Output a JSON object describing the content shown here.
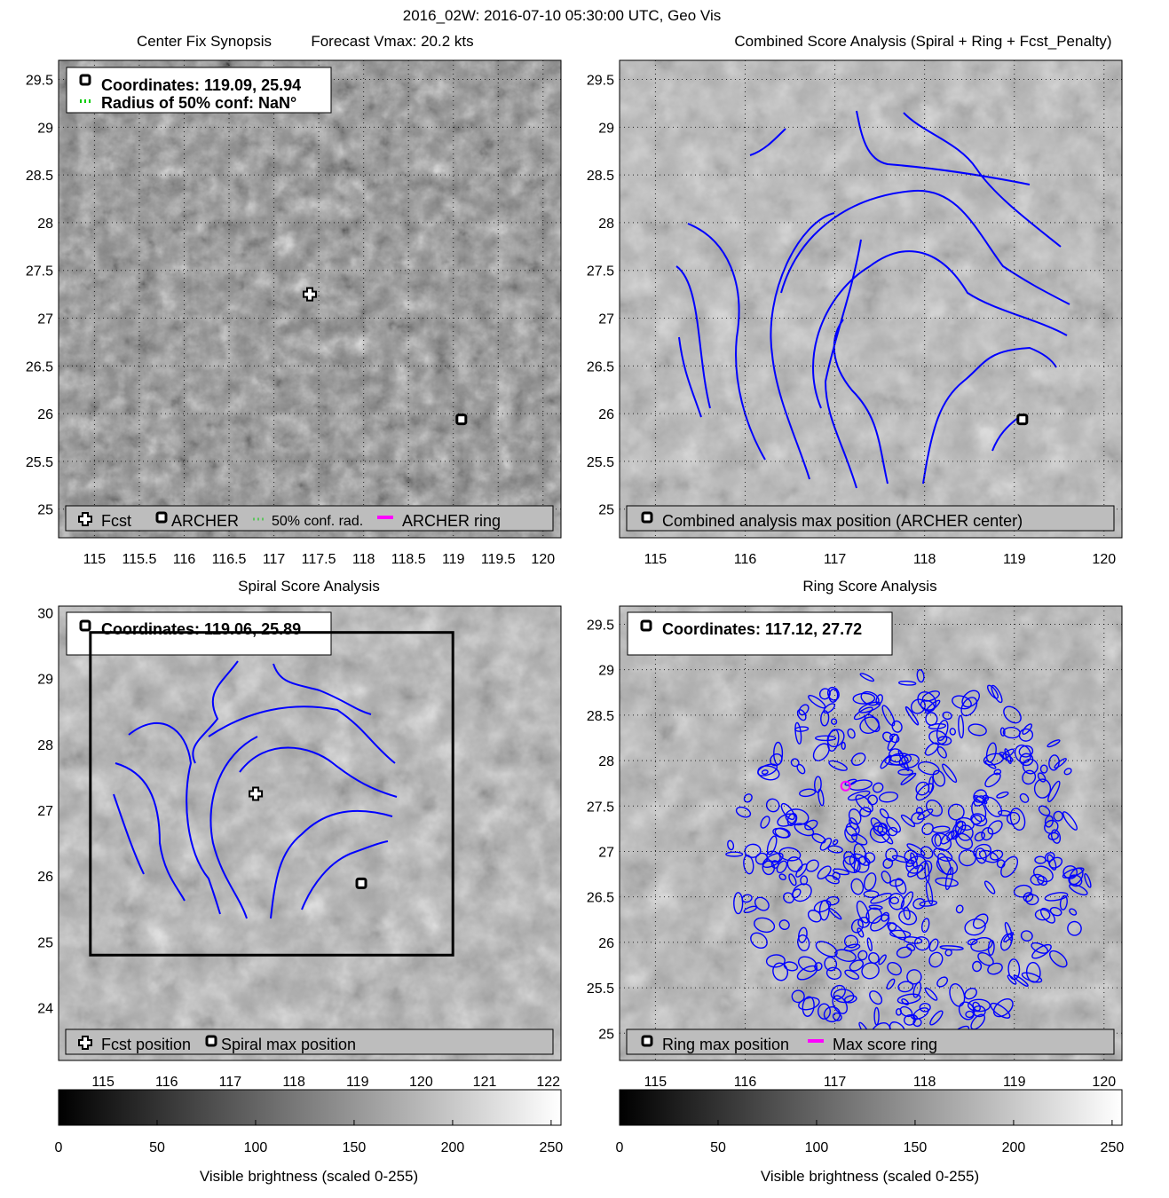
{
  "figure_title": "2016_02W: 2016-07-10 05:30:00 UTC, Geo Vis",
  "colors": {
    "track": "#0000ff",
    "ring": "#ff00ff",
    "conf": "#00cc00",
    "legend_bg": "#bdbdbd"
  },
  "chart_data": [
    {
      "type": "heatmap",
      "panel": "top-left",
      "title": "Center Fix Synopsis",
      "subtitle": "Forecast Vmax: 20.2 kts",
      "xlim": [
        114.6,
        120.2
      ],
      "ylim": [
        24.7,
        29.7
      ],
      "xticks": [
        "115",
        "115.5",
        "116",
        "116.5",
        "117",
        "117.5",
        "118",
        "118.5",
        "119",
        "119.5",
        "120"
      ],
      "yticks": [
        "25",
        "25.5",
        "26",
        "26.5",
        "27",
        "27.5",
        "28",
        "28.5",
        "29",
        "29.5"
      ],
      "grid": true,
      "info_lines": [
        "Coordinates: 119.09, 25.94",
        "Radius of 50% conf: NaN°"
      ],
      "legend": [
        "Fcst",
        "ARCHER",
        "50% conf. rad.",
        "ARCHER ring"
      ],
      "fcst": [
        117.4,
        27.25
      ],
      "archer": [
        119.09,
        25.94
      ]
    },
    {
      "type": "heatmap",
      "panel": "top-right",
      "title": "Combined Score Analysis (Spiral + Ring + Fcst_Penalty)",
      "xlim": [
        114.6,
        120.2
      ],
      "ylim": [
        24.7,
        29.7
      ],
      "xticks": [
        "115",
        "116",
        "117",
        "118",
        "119",
        "120"
      ],
      "yticks": [
        "25",
        "25.5",
        "26",
        "26.5",
        "27",
        "27.5",
        "28",
        "28.5",
        "29",
        "29.5"
      ],
      "grid": true,
      "legend": [
        "Combined analysis max position (ARCHER center)"
      ],
      "archer": [
        119.09,
        25.94
      ]
    },
    {
      "type": "heatmap",
      "panel": "bottom-left",
      "title": "Spiral Score Analysis",
      "xlim": [
        114.3,
        122.2
      ],
      "ylim": [
        23.2,
        30.1
      ],
      "xticks": [
        "115",
        "116",
        "117",
        "118",
        "119",
        "120",
        "121",
        "122"
      ],
      "yticks": [
        "24",
        "25",
        "26",
        "27",
        "28",
        "29",
        "30"
      ],
      "grid": false,
      "info_lines": [
        "Coordinates: 119.06, 25.89"
      ],
      "legend": [
        "Fcst position",
        "Spiral max position"
      ],
      "fcst": [
        117.4,
        27.25
      ],
      "spiral_max": [
        119.06,
        25.89
      ],
      "box": {
        "x": [
          114.8,
          120.5
        ],
        "y": [
          24.8,
          29.7
        ]
      }
    },
    {
      "type": "heatmap",
      "panel": "bottom-right",
      "title": "Ring Score Analysis",
      "xlim": [
        114.6,
        120.2
      ],
      "ylim": [
        24.7,
        29.7
      ],
      "xticks": [
        "115",
        "116",
        "117",
        "118",
        "119",
        "120"
      ],
      "yticks": [
        "25",
        "25.5",
        "26",
        "26.5",
        "27",
        "27.5",
        "28",
        "28.5",
        "29",
        "29.5"
      ],
      "grid": true,
      "info_lines": [
        "Coordinates: 117.12, 27.72"
      ],
      "legend": [
        "Ring max position",
        "Max score ring"
      ],
      "ring_max": [
        117.12,
        27.72
      ]
    }
  ],
  "colorbars": [
    {
      "label": "Visible brightness (scaled 0-255)",
      "ticks": [
        "0",
        "50",
        "100",
        "150",
        "200",
        "250"
      ],
      "range": [
        0,
        255
      ]
    },
    {
      "label": "Visible brightness (scaled 0-255)",
      "ticks": [
        "0",
        "50",
        "100",
        "150",
        "200",
        "250"
      ],
      "range": [
        0,
        255
      ]
    }
  ]
}
